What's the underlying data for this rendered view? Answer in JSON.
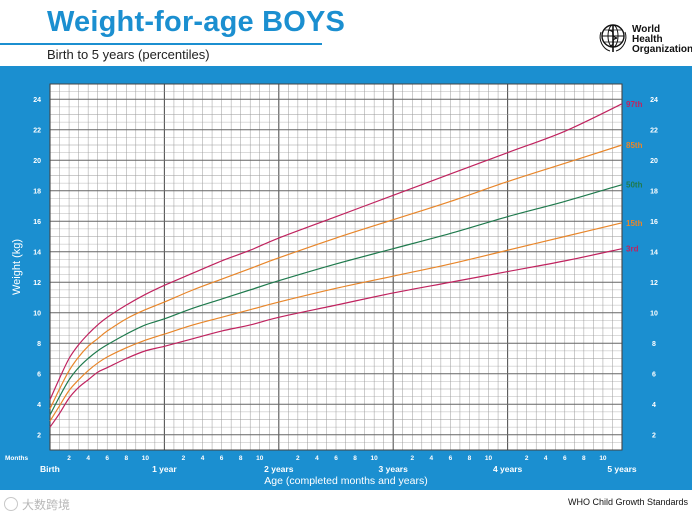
{
  "header": {
    "title": "Weight-for-age BOYS",
    "subtitle": "Birth to 5 years (percentiles)"
  },
  "logo": {
    "name": "who-emblem-icon",
    "line1": "World Health",
    "line2": "Organization"
  },
  "footer": {
    "source": "WHO Child Growth Standards",
    "watermark": "大数跨境"
  },
  "colors": {
    "frame": "#1b8fd0",
    "grid": "#9a9a9a",
    "p3": "#c0235f",
    "p15": "#e8862a",
    "p50": "#1f7a4d",
    "p85": "#e8862a",
    "p97": "#c0235f"
  },
  "chart_data": {
    "type": "line",
    "title": "Weight-for-age BOYS",
    "subtitle": "Birth to 5 years (percentiles)",
    "xlabel": "Age (completed months and years)",
    "ylabel": "Weight (kg)",
    "x_unit_label": "Months",
    "xlim": [
      0,
      60
    ],
    "ylim": [
      1,
      25
    ],
    "y_ticks": [
      2,
      4,
      6,
      8,
      10,
      12,
      14,
      16,
      18,
      20,
      22,
      24
    ],
    "x_minor_ticks": [
      2,
      4,
      6,
      8,
      10
    ],
    "x_major_labels": [
      {
        "month": 0,
        "label": "Birth"
      },
      {
        "month": 12,
        "label": "1 year"
      },
      {
        "month": 24,
        "label": "2 years"
      },
      {
        "month": 36,
        "label": "3 years"
      },
      {
        "month": 48,
        "label": "4 years"
      },
      {
        "month": 60,
        "label": "5 years"
      }
    ],
    "grid": true,
    "x_months": [
      0,
      1,
      2,
      3,
      4,
      5,
      6,
      8,
      10,
      12,
      15,
      18,
      21,
      24,
      30,
      36,
      42,
      48,
      54,
      60
    ],
    "series": [
      {
        "name": "3rd",
        "color_key": "p3",
        "values": [
          2.5,
          3.4,
          4.4,
          5.1,
          5.6,
          6.1,
          6.4,
          7.0,
          7.5,
          7.8,
          8.3,
          8.8,
          9.2,
          9.7,
          10.5,
          11.3,
          12.0,
          12.7,
          13.4,
          14.2
        ]
      },
      {
        "name": "15th",
        "color_key": "p15",
        "values": [
          2.9,
          3.9,
          4.9,
          5.6,
          6.2,
          6.7,
          7.1,
          7.7,
          8.2,
          8.6,
          9.2,
          9.7,
          10.2,
          10.7,
          11.6,
          12.4,
          13.2,
          14.1,
          15.0,
          15.9
        ]
      },
      {
        "name": "50th",
        "color_key": "p50",
        "values": [
          3.3,
          4.5,
          5.6,
          6.4,
          7.0,
          7.5,
          7.9,
          8.6,
          9.2,
          9.6,
          10.3,
          10.9,
          11.5,
          12.1,
          13.2,
          14.2,
          15.2,
          16.3,
          17.3,
          18.4
        ]
      },
      {
        "name": "85th",
        "color_key": "p85",
        "values": [
          3.7,
          5.0,
          6.2,
          7.1,
          7.8,
          8.3,
          8.8,
          9.6,
          10.2,
          10.7,
          11.5,
          12.2,
          12.9,
          13.6,
          14.9,
          16.1,
          17.3,
          18.6,
          19.8,
          21.0
        ]
      },
      {
        "name": "97th",
        "color_key": "p97",
        "values": [
          4.3,
          5.7,
          7.0,
          7.9,
          8.6,
          9.2,
          9.7,
          10.5,
          11.2,
          11.8,
          12.6,
          13.4,
          14.1,
          14.9,
          16.3,
          17.7,
          19.1,
          20.5,
          21.9,
          23.7
        ]
      }
    ]
  }
}
